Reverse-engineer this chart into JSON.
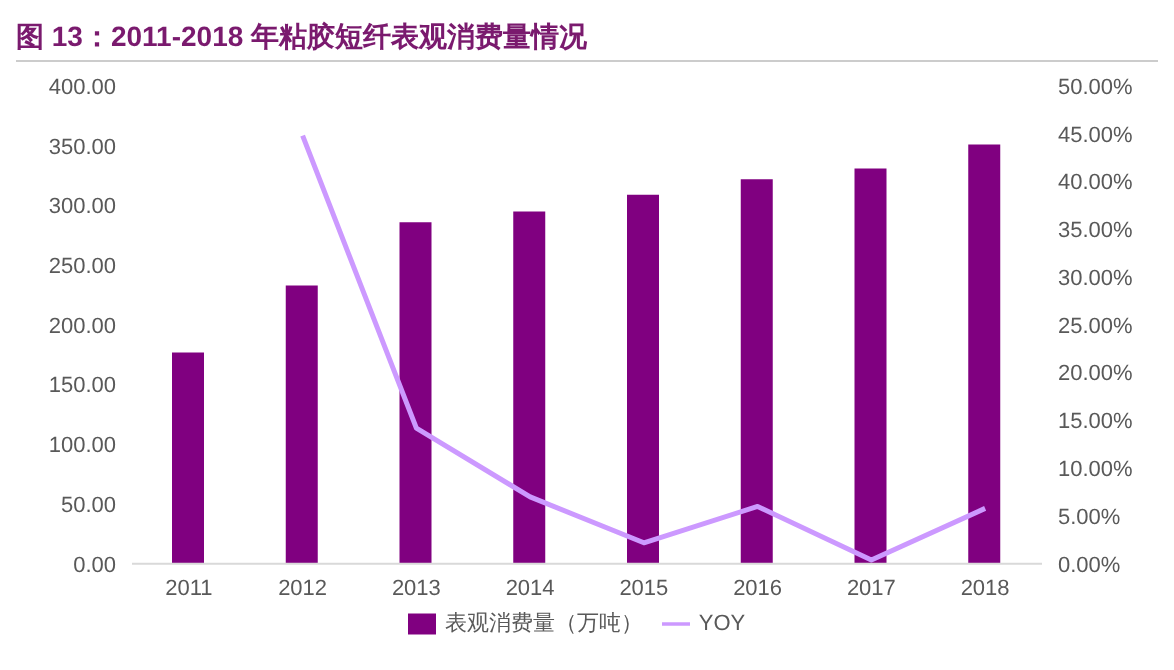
{
  "chart_data": {
    "type": "bar",
    "title": "图 13：2011-2018 年粘胶短纤表观消费量情况",
    "categories": [
      "2011",
      "2012",
      "2013",
      "2014",
      "2015",
      "2016",
      "2017",
      "2018"
    ],
    "series": [
      {
        "name": "表观消费量（万吨）",
        "color": "#800080",
        "values": [
          177,
          233,
          286,
          295,
          309,
          322,
          331,
          351
        ]
      },
      {
        "name": "YOY",
        "type": "line",
        "axis": "y2",
        "color": "#cc99ff",
        "values": [
          null,
          44.8,
          14.2,
          7.0,
          2.2,
          6.0,
          0.4,
          5.8
        ]
      }
    ],
    "ylim": [
      0,
      400
    ],
    "yticks": [
      {
        "value": 0,
        "label": "0.00"
      },
      {
        "value": 50,
        "label": "50.00"
      },
      {
        "value": 100,
        "label": "100.00"
      },
      {
        "value": 150,
        "label": "150.00"
      },
      {
        "value": 200,
        "label": "200.00"
      },
      {
        "value": 250,
        "label": "250.00"
      },
      {
        "value": 300,
        "label": "300.00"
      },
      {
        "value": 350,
        "label": "350.00"
      },
      {
        "value": 400,
        "label": "400.00"
      }
    ],
    "y2lim": [
      0,
      50
    ],
    "y2ticks": [
      {
        "value": 0,
        "label": "0.00%"
      },
      {
        "value": 5,
        "label": "5.00%"
      },
      {
        "value": 10,
        "label": "10.00%"
      },
      {
        "value": 15,
        "label": "15.00%"
      },
      {
        "value": 20,
        "label": "20.00%"
      },
      {
        "value": 25,
        "label": "25.00%"
      },
      {
        "value": 30,
        "label": "30.00%"
      },
      {
        "value": 35,
        "label": "35.00%"
      },
      {
        "value": 40,
        "label": "40.00%"
      },
      {
        "value": 45,
        "label": "45.00%"
      },
      {
        "value": 50,
        "label": "50.00%"
      }
    ],
    "grid": false,
    "legend": "bottom",
    "marker": "none",
    "line_style": "solid"
  }
}
